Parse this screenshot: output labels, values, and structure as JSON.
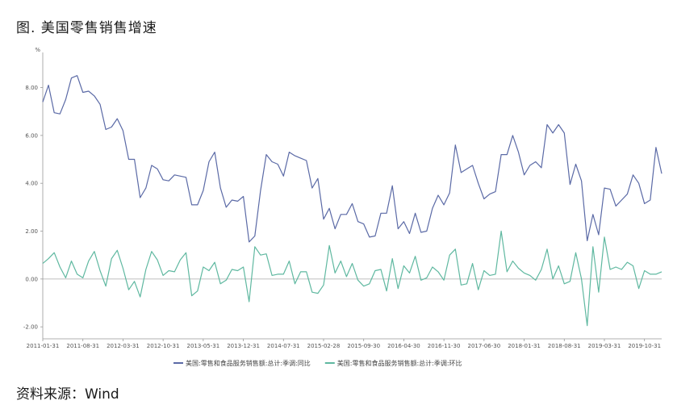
{
  "title": "图. 美国零售销售增速",
  "source": "资料来源：Wind",
  "chart_data": {
    "type": "line",
    "unit_label": "%",
    "x_start": "2011-01",
    "x_freq": "monthly",
    "ylim": [
      -2.5,
      9.3
    ],
    "y_ticks": [
      {
        "value": 8,
        "label": "8.00"
      },
      {
        "value": 6,
        "label": "6.00"
      },
      {
        "value": 4,
        "label": "4.00"
      },
      {
        "value": 2,
        "label": "2.00"
      },
      {
        "value": 0,
        "label": "0.00"
      },
      {
        "value": -2,
        "label": "-2.00"
      }
    ],
    "x_ticks": [
      {
        "index": 0,
        "label": "2011-01-31"
      },
      {
        "index": 7,
        "label": "2011-08-31"
      },
      {
        "index": 14,
        "label": "2012-03-31"
      },
      {
        "index": 21,
        "label": "2012-10-31"
      },
      {
        "index": 28,
        "label": "2013-05-31"
      },
      {
        "index": 35,
        "label": "2013-12-31"
      },
      {
        "index": 42,
        "label": "2014-07-31"
      },
      {
        "index": 49,
        "label": "2015-02-28"
      },
      {
        "index": 56,
        "label": "2015-09-30"
      },
      {
        "index": 63,
        "label": "2016-04-30"
      },
      {
        "index": 70,
        "label": "2016-11-30"
      },
      {
        "index": 77,
        "label": "2017-06-30"
      },
      {
        "index": 84,
        "label": "2018-01-31"
      },
      {
        "index": 91,
        "label": "2018-08-31"
      },
      {
        "index": 98,
        "label": "2019-03-31"
      },
      {
        "index": 105,
        "label": "2019-10-31"
      }
    ],
    "series": [
      {
        "name": "美国:零售和食品服务销售额:总计:季调:同比",
        "color": "#5b6aa6",
        "values": [
          7.4,
          8.1,
          6.95,
          6.9,
          7.5,
          8.4,
          8.5,
          7.8,
          7.85,
          7.65,
          7.3,
          6.25,
          6.35,
          6.7,
          6.2,
          5.0,
          5.0,
          3.4,
          3.8,
          4.75,
          4.6,
          4.15,
          4.1,
          4.35,
          4.3,
          4.25,
          3.1,
          3.1,
          3.7,
          4.9,
          5.3,
          3.8,
          3.0,
          3.3,
          3.25,
          3.45,
          1.55,
          1.8,
          3.7,
          5.2,
          4.9,
          4.8,
          4.3,
          5.3,
          5.15,
          5.05,
          4.95,
          3.8,
          4.2,
          2.5,
          2.95,
          2.1,
          2.7,
          2.7,
          3.15,
          2.4,
          2.3,
          1.75,
          1.8,
          2.75,
          2.75,
          3.9,
          2.1,
          2.4,
          1.9,
          2.75,
          1.95,
          2.0,
          2.95,
          3.5,
          3.1,
          3.6,
          5.6,
          4.45,
          4.6,
          4.75,
          4.0,
          3.35,
          3.55,
          3.65,
          5.2,
          5.2,
          6.0,
          5.3,
          4.35,
          4.75,
          4.9,
          4.65,
          6.45,
          6.1,
          6.45,
          6.1,
          3.95,
          4.8,
          4.1,
          1.6,
          2.7,
          1.85,
          3.8,
          3.75,
          3.05,
          3.3,
          3.55,
          4.35,
          4.0,
          3.15,
          3.3,
          5.5,
          4.4
        ]
      },
      {
        "name": "美国:零售和食品服务销售额:总计:季调:环比",
        "color": "#5fb8a0",
        "values": [
          0.65,
          0.85,
          1.1,
          0.5,
          0.05,
          0.75,
          0.2,
          0.05,
          0.75,
          1.15,
          0.35,
          -0.3,
          0.85,
          1.2,
          0.45,
          -0.45,
          -0.1,
          -0.75,
          0.4,
          1.15,
          0.8,
          0.15,
          0.35,
          0.3,
          0.8,
          1.1,
          -0.7,
          -0.5,
          0.5,
          0.35,
          0.7,
          -0.2,
          -0.05,
          0.4,
          0.35,
          0.5,
          -0.95,
          1.35,
          1.0,
          1.05,
          0.15,
          0.2,
          0.2,
          0.75,
          -0.2,
          0.3,
          0.3,
          -0.55,
          -0.6,
          -0.25,
          1.4,
          0.25,
          0.75,
          0.1,
          0.65,
          -0.05,
          -0.3,
          -0.2,
          0.35,
          0.4,
          -0.5,
          0.85,
          -0.4,
          0.55,
          0.25,
          0.95,
          -0.05,
          0.05,
          0.5,
          0.3,
          -0.05,
          1.0,
          1.25,
          -0.25,
          -0.2,
          0.65,
          -0.45,
          0.35,
          0.15,
          0.2,
          2.0,
          0.3,
          0.75,
          0.45,
          0.25,
          0.15,
          -0.05,
          0.4,
          1.25,
          0.0,
          0.55,
          -0.2,
          -0.1,
          1.1,
          0.0,
          -1.95,
          1.35,
          -0.55,
          1.75,
          0.4,
          0.5,
          0.4,
          0.7,
          0.55,
          -0.4,
          0.35,
          0.2,
          0.2,
          0.3
        ]
      }
    ]
  }
}
